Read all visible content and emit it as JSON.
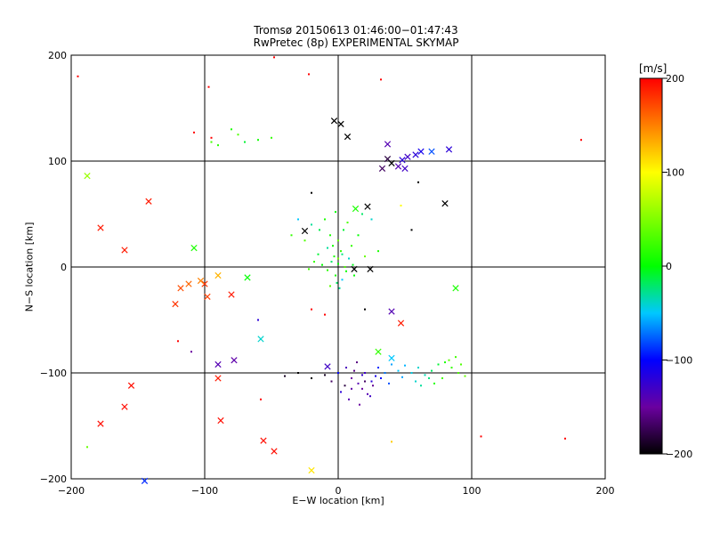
{
  "chart_data": {
    "type": "scatter",
    "title": "Tromsø 20150613 01:46:00−01:47:43",
    "subtitle": "RwPretec (8p) EXPERIMENTAL SKYMAP",
    "xlabel": "E−W location [km]",
    "ylabel": "N−S location [km]",
    "xlim": [
      -200,
      200
    ],
    "ylim": [
      -200,
      200
    ],
    "xticks": [
      -200,
      -100,
      0,
      100,
      200
    ],
    "yticks": [
      -200,
      -100,
      0,
      100,
      200
    ],
    "grid": true,
    "colorbar": {
      "label": "[m/s]",
      "range": [
        -200,
        200
      ],
      "ticks": [
        -200,
        -100,
        0,
        100,
        200
      ]
    },
    "crosses": [
      {
        "x": -142,
        "y": 62,
        "v": 190
      },
      {
        "x": -178,
        "y": 37,
        "v": 190
      },
      {
        "x": -160,
        "y": 16,
        "v": 190
      },
      {
        "x": -188,
        "y": 86,
        "v": 60
      },
      {
        "x": -108,
        "y": 18,
        "v": 10
      },
      {
        "x": -100,
        "y": -16,
        "v": 180
      },
      {
        "x": -103,
        "y": -13,
        "v": 150
      },
      {
        "x": -112,
        "y": -16,
        "v": 160
      },
      {
        "x": -118,
        "y": -20,
        "v": 170
      },
      {
        "x": -122,
        "y": -35,
        "v": 180
      },
      {
        "x": -98,
        "y": -28,
        "v": 175
      },
      {
        "x": -90,
        "y": -8,
        "v": 130
      },
      {
        "x": -80,
        "y": -26,
        "v": 190
      },
      {
        "x": -68,
        "y": -10,
        "v": 0
      },
      {
        "x": -58,
        "y": -68,
        "v": -40
      },
      {
        "x": -90,
        "y": -92,
        "v": -140
      },
      {
        "x": -78,
        "y": -88,
        "v": -145
      },
      {
        "x": -90,
        "y": -105,
        "v": 190
      },
      {
        "x": -88,
        "y": -145,
        "v": 195
      },
      {
        "x": -155,
        "y": -112,
        "v": 195
      },
      {
        "x": -160,
        "y": -132,
        "v": 195
      },
      {
        "x": -178,
        "y": -148,
        "v": 195
      },
      {
        "x": -56,
        "y": -164,
        "v": 195
      },
      {
        "x": -48,
        "y": -174,
        "v": 195
      },
      {
        "x": -20,
        "y": -192,
        "v": 110
      },
      {
        "x": -145,
        "y": -202,
        "v": -90
      },
      {
        "x": -3,
        "y": 138,
        "v": -200
      },
      {
        "x": 2,
        "y": 135,
        "v": -200
      },
      {
        "x": 7,
        "y": 123,
        "v": -200
      },
      {
        "x": 37,
        "y": 116,
        "v": -140
      },
      {
        "x": 37,
        "y": 102,
        "v": -180
      },
      {
        "x": 40,
        "y": 98,
        "v": -200
      },
      {
        "x": 33,
        "y": 93,
        "v": -170
      },
      {
        "x": 45,
        "y": 95,
        "v": -140
      },
      {
        "x": 48,
        "y": 101,
        "v": -120
      },
      {
        "x": 52,
        "y": 104,
        "v": -130
      },
      {
        "x": 50,
        "y": 93,
        "v": -130
      },
      {
        "x": 58,
        "y": 106,
        "v": -120
      },
      {
        "x": 62,
        "y": 109,
        "v": -110
      },
      {
        "x": 70,
        "y": 109,
        "v": -80
      },
      {
        "x": 83,
        "y": 111,
        "v": -120
      },
      {
        "x": 22,
        "y": 57,
        "v": -200
      },
      {
        "x": 80,
        "y": 60,
        "v": -200
      },
      {
        "x": 13,
        "y": 55,
        "v": 10
      },
      {
        "x": -25,
        "y": 34,
        "v": -200
      },
      {
        "x": 12,
        "y": -2,
        "v": -200
      },
      {
        "x": 24,
        "y": -2,
        "v": -200
      },
      {
        "x": 40,
        "y": -42,
        "v": -140
      },
      {
        "x": 47,
        "y": -53,
        "v": 190
      },
      {
        "x": 88,
        "y": -20,
        "v": 10
      },
      {
        "x": -8,
        "y": -94,
        "v": -130
      },
      {
        "x": 30,
        "y": -80,
        "v": 20
      },
      {
        "x": 40,
        "y": -86,
        "v": -50
      }
    ],
    "points_center": [
      {
        "x": -5,
        "y": 5,
        "v": -20
      },
      {
        "x": -3,
        "y": 10,
        "v": 10
      },
      {
        "x": 0,
        "y": 3,
        "v": 0
      },
      {
        "x": 2,
        "y": 15,
        "v": 20
      },
      {
        "x": -8,
        "y": 18,
        "v": -30
      },
      {
        "x": 5,
        "y": 0,
        "v": 30
      },
      {
        "x": -2,
        "y": -8,
        "v": 10
      },
      {
        "x": 8,
        "y": 8,
        "v": -40
      },
      {
        "x": -12,
        "y": 2,
        "v": 0
      },
      {
        "x": 0,
        "y": 25,
        "v": 40
      },
      {
        "x": 3,
        "y": -12,
        "v": -50
      },
      {
        "x": -6,
        "y": 30,
        "v": 10
      },
      {
        "x": 10,
        "y": 20,
        "v": 20
      },
      {
        "x": -15,
        "y": 12,
        "v": -10
      },
      {
        "x": 6,
        "y": -4,
        "v": 5
      },
      {
        "x": -1,
        "y": -15,
        "v": -20
      },
      {
        "x": -20,
        "y": 40,
        "v": -30
      },
      {
        "x": 15,
        "y": 30,
        "v": 0
      },
      {
        "x": -30,
        "y": 45,
        "v": -50
      },
      {
        "x": 18,
        "y": 50,
        "v": -20
      },
      {
        "x": -10,
        "y": 45,
        "v": 10
      },
      {
        "x": 20,
        "y": 10,
        "v": 40
      },
      {
        "x": -25,
        "y": 25,
        "v": 30
      },
      {
        "x": 4,
        "y": 35,
        "v": -10
      },
      {
        "x": -4,
        "y": 20,
        "v": 5
      },
      {
        "x": 1,
        "y": -20,
        "v": -30
      },
      {
        "x": -18,
        "y": 5,
        "v": 20
      },
      {
        "x": 12,
        "y": -8,
        "v": 0
      },
      {
        "x": -8,
        "y": -3,
        "v": 15
      },
      {
        "x": 7,
        "y": 42,
        "v": 30
      },
      {
        "x": -14,
        "y": 35,
        "v": -15
      },
      {
        "x": -35,
        "y": 30,
        "v": 20
      },
      {
        "x": 25,
        "y": 45,
        "v": -40
      },
      {
        "x": -2,
        "y": 52,
        "v": 0
      },
      {
        "x": 30,
        "y": 15,
        "v": 10
      },
      {
        "x": -22,
        "y": -2,
        "v": 25
      },
      {
        "x": 11,
        "y": 2,
        "v": -5
      },
      {
        "x": -6,
        "y": -18,
        "v": 35
      },
      {
        "x": 0,
        "y": 8,
        "v": 45
      },
      {
        "x": 3,
        "y": 12,
        "v": -25
      }
    ],
    "points_south": [
      {
        "x": 10,
        "y": -105,
        "v": -150
      },
      {
        "x": 15,
        "y": -110,
        "v": -140
      },
      {
        "x": 20,
        "y": -100,
        "v": -130
      },
      {
        "x": 25,
        "y": -108,
        "v": -120
      },
      {
        "x": 18,
        "y": -115,
        "v": -150
      },
      {
        "x": 12,
        "y": -98,
        "v": -160
      },
      {
        "x": 22,
        "y": -120,
        "v": -140
      },
      {
        "x": 5,
        "y": -112,
        "v": -180
      },
      {
        "x": 28,
        "y": -103,
        "v": -110
      },
      {
        "x": 30,
        "y": -95,
        "v": -90
      },
      {
        "x": 35,
        "y": -100,
        "v": -70
      },
      {
        "x": 40,
        "y": -92,
        "v": -60
      },
      {
        "x": 45,
        "y": -98,
        "v": -50
      },
      {
        "x": 50,
        "y": -93,
        "v": -55
      },
      {
        "x": 55,
        "y": -100,
        "v": -45
      },
      {
        "x": 60,
        "y": -95,
        "v": -40
      },
      {
        "x": 65,
        "y": -102,
        "v": -35
      },
      {
        "x": 70,
        "y": -98,
        "v": -20
      },
      {
        "x": 75,
        "y": -92,
        "v": -10
      },
      {
        "x": 80,
        "y": -90,
        "v": 10
      },
      {
        "x": 85,
        "y": -95,
        "v": 20
      },
      {
        "x": 90,
        "y": -100,
        "v": 30
      },
      {
        "x": 78,
        "y": -105,
        "v": 25
      },
      {
        "x": 72,
        "y": -110,
        "v": 15
      },
      {
        "x": 83,
        "y": -88,
        "v": 35
      },
      {
        "x": 95,
        "y": -103,
        "v": 40
      },
      {
        "x": 68,
        "y": -105,
        "v": -25
      },
      {
        "x": 58,
        "y": -108,
        "v": -40
      },
      {
        "x": 48,
        "y": -104,
        "v": -60
      },
      {
        "x": 38,
        "y": -110,
        "v": -80
      },
      {
        "x": 0,
        "y": -100,
        "v": -100
      },
      {
        "x": -5,
        "y": -108,
        "v": -170
      },
      {
        "x": -10,
        "y": -102,
        "v": -190
      },
      {
        "x": -20,
        "y": -105,
        "v": -200
      },
      {
        "x": -30,
        "y": -100,
        "v": -200
      },
      {
        "x": -40,
        "y": -103,
        "v": -190
      },
      {
        "x": 8,
        "y": -125,
        "v": -140
      },
      {
        "x": 16,
        "y": -130,
        "v": -150
      },
      {
        "x": 24,
        "y": -122,
        "v": -130
      },
      {
        "x": 2,
        "y": -118,
        "v": -120
      },
      {
        "x": 14,
        "y": -90,
        "v": -160
      },
      {
        "x": 20,
        "y": -108,
        "v": -170
      },
      {
        "x": 26,
        "y": -112,
        "v": -155
      },
      {
        "x": 32,
        "y": -105,
        "v": -100
      },
      {
        "x": 10,
        "y": -115,
        "v": -145
      },
      {
        "x": 6,
        "y": -95,
        "v": -135
      },
      {
        "x": 18,
        "y": -102,
        "v": -125
      },
      {
        "x": 88,
        "y": -85,
        "v": 25
      },
      {
        "x": 92,
        "y": -92,
        "v": 30
      },
      {
        "x": 62,
        "y": -112,
        "v": -30
      }
    ],
    "points_other": [
      {
        "x": -95,
        "y": 122,
        "v": 200
      },
      {
        "x": -108,
        "y": 127,
        "v": 200
      },
      {
        "x": -22,
        "y": 182,
        "v": 200
      },
      {
        "x": -48,
        "y": 198,
        "v": 200
      },
      {
        "x": 32,
        "y": 177,
        "v": 200
      },
      {
        "x": -97,
        "y": 170,
        "v": 200
      },
      {
        "x": 182,
        "y": 120,
        "v": 200
      },
      {
        "x": -195,
        "y": 180,
        "v": 200
      },
      {
        "x": -120,
        "y": -70,
        "v": 200
      },
      {
        "x": -58,
        "y": -125,
        "v": 200
      },
      {
        "x": 107,
        "y": -160,
        "v": 200
      },
      {
        "x": 170,
        "y": -162,
        "v": 200
      },
      {
        "x": 40,
        "y": -165,
        "v": 120
      },
      {
        "x": -80,
        "y": 130,
        "v": 10
      },
      {
        "x": -75,
        "y": 125,
        "v": 30
      },
      {
        "x": -60,
        "y": 120,
        "v": 5
      },
      {
        "x": -50,
        "y": 122,
        "v": 20
      },
      {
        "x": -70,
        "y": 118,
        "v": -10
      },
      {
        "x": -90,
        "y": 115,
        "v": 15
      },
      {
        "x": -95,
        "y": 118,
        "v": 25
      },
      {
        "x": -20,
        "y": 70,
        "v": -200
      },
      {
        "x": 55,
        "y": 35,
        "v": -200
      },
      {
        "x": 20,
        "y": -40,
        "v": -200
      },
      {
        "x": -10,
        "y": -45,
        "v": 200
      },
      {
        "x": -20,
        "y": -40,
        "v": 200
      },
      {
        "x": -110,
        "y": -80,
        "v": -150
      },
      {
        "x": -60,
        "y": -50,
        "v": -120
      },
      {
        "x": 60,
        "y": 80,
        "v": -200
      },
      {
        "x": 47,
        "y": 58,
        "v": 100
      },
      {
        "x": -188,
        "y": -170,
        "v": 40
      }
    ]
  }
}
